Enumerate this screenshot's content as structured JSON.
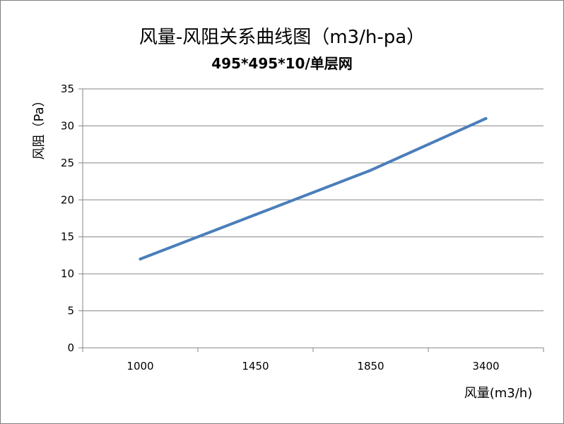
{
  "chart_data": {
    "type": "line",
    "title": "风量-风阻关系曲线图（m3/h-pa）",
    "subtitle": "495*495*10/单层网",
    "xlabel": "风量(m3/h)",
    "ylabel": "风阻（Pa）",
    "categories": [
      "1000",
      "1450",
      "1850",
      "3400"
    ],
    "series": [
      {
        "values": [
          12,
          18,
          24,
          31
        ],
        "color": "#4a7ebb"
      }
    ],
    "ylim": [
      0,
      35
    ],
    "yticks": [
      0,
      5,
      10,
      15,
      20,
      25,
      30,
      35
    ],
    "grid": true,
    "legend": "none"
  }
}
